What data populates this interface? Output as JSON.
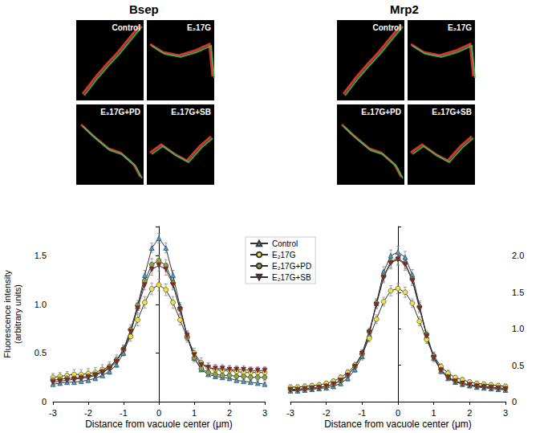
{
  "panels": [
    {
      "title": "Bsep",
      "labels": [
        "Control",
        "E₂17G",
        "E₂17G+PD",
        "E₂17G+SB"
      ]
    },
    {
      "title": "Mrp2",
      "labels": [
        "Control",
        "E₂17G",
        "E₂17G+PD",
        "E₂17G+SB"
      ]
    }
  ],
  "chart_data": [
    {
      "type": "line",
      "xlabel": "Distance from vacuole center (μm)",
      "ylabel": "Fluorescence intensity\n(arbitrary units)",
      "legend": "center",
      "x": [
        -3.0,
        -2.8,
        -2.6,
        -2.4,
        -2.2,
        -2.0,
        -1.8,
        -1.6,
        -1.4,
        -1.2,
        -1.0,
        -0.8,
        -0.6,
        -0.4,
        -0.2,
        0,
        0.2,
        0.4,
        0.6,
        0.8,
        1.0,
        1.2,
        1.4,
        1.6,
        1.8,
        2.0,
        2.2,
        2.4,
        2.6,
        2.8,
        3.0
      ],
      "xlim": [
        -3,
        3
      ],
      "xticks": [
        -3,
        -2,
        -1,
        0,
        1,
        2,
        3
      ],
      "ylim": [
        0,
        1.8
      ],
      "yticks": [
        0,
        0.5,
        {
          "value": 1,
          "label": "1.0"
        },
        1.5
      ],
      "series": [
        {
          "name": "Control",
          "color": "#3f9fd0",
          "marker": "triangle",
          "values": [
            0.18,
            0.19,
            0.2,
            0.2,
            0.21,
            0.22,
            0.24,
            0.27,
            0.31,
            0.38,
            0.5,
            0.7,
            0.98,
            1.3,
            1.58,
            1.68,
            1.58,
            1.3,
            0.98,
            0.68,
            0.45,
            0.33,
            0.28,
            0.26,
            0.25,
            0.24,
            0.22,
            0.21,
            0.2,
            0.19,
            0.18
          ],
          "errors": [
            0.02,
            0.02,
            0.02,
            0.02,
            0.02,
            0.02,
            0.02,
            0.02,
            0.03,
            0.03,
            0.03,
            0.04,
            0.04,
            0.05,
            0.05,
            0.05,
            0.05,
            0.05,
            0.04,
            0.04,
            0.03,
            0.02,
            0.02,
            0.02,
            0.02,
            0.02,
            0.02,
            0.02,
            0.02,
            0.02,
            0.02
          ]
        },
        {
          "name": "E₂17G",
          "color": "#f2e33c",
          "marker": "circle",
          "values": [
            0.25,
            0.26,
            0.27,
            0.28,
            0.28,
            0.29,
            0.3,
            0.33,
            0.36,
            0.43,
            0.53,
            0.67,
            0.84,
            1.02,
            1.16,
            1.2,
            1.15,
            1.02,
            0.84,
            0.66,
            0.5,
            0.4,
            0.35,
            0.33,
            0.32,
            0.32,
            0.31,
            0.3,
            0.3,
            0.3,
            0.3
          ],
          "errors": [
            0.04,
            0.04,
            0.04,
            0.05,
            0.05,
            0.05,
            0.05,
            0.05,
            0.05,
            0.05,
            0.05,
            0.05,
            0.06,
            0.06,
            0.06,
            0.06,
            0.06,
            0.06,
            0.05,
            0.05,
            0.05,
            0.05,
            0.05,
            0.05,
            0.05,
            0.05,
            0.05,
            0.05,
            0.05,
            0.05,
            0.05
          ]
        },
        {
          "name": "E₂17G+PD",
          "color": "#8da443",
          "marker": "circle",
          "values": [
            0.22,
            0.23,
            0.24,
            0.24,
            0.25,
            0.26,
            0.28,
            0.31,
            0.35,
            0.42,
            0.54,
            0.74,
            0.99,
            1.24,
            1.41,
            1.45,
            1.4,
            1.22,
            0.95,
            0.67,
            0.45,
            0.34,
            0.3,
            0.28,
            0.27,
            0.27,
            0.26,
            0.26,
            0.25,
            0.25,
            0.25
          ],
          "errors": [
            0.03,
            0.03,
            0.03,
            0.03,
            0.03,
            0.03,
            0.03,
            0.04,
            0.04,
            0.04,
            0.04,
            0.05,
            0.05,
            0.05,
            0.06,
            0.06,
            0.06,
            0.05,
            0.05,
            0.04,
            0.04,
            0.03,
            0.03,
            0.03,
            0.03,
            0.03,
            0.03,
            0.03,
            0.03,
            0.03,
            0.03
          ]
        },
        {
          "name": "E₂17G+SB",
          "color": "#a31c1c",
          "marker": "triangle-down",
          "values": [
            0.2,
            0.21,
            0.22,
            0.23,
            0.24,
            0.25,
            0.27,
            0.3,
            0.34,
            0.41,
            0.53,
            0.72,
            0.96,
            1.2,
            1.36,
            1.4,
            1.36,
            1.2,
            0.95,
            0.68,
            0.48,
            0.38,
            0.35,
            0.34,
            0.34,
            0.33,
            0.33,
            0.33,
            0.32,
            0.32,
            0.32
          ],
          "errors": [
            0.04,
            0.04,
            0.04,
            0.04,
            0.04,
            0.04,
            0.04,
            0.04,
            0.04,
            0.04,
            0.04,
            0.05,
            0.05,
            0.05,
            0.06,
            0.06,
            0.06,
            0.05,
            0.05,
            0.05,
            0.04,
            0.04,
            0.04,
            0.04,
            0.04,
            0.04,
            0.04,
            0.04,
            0.04,
            0.04,
            0.04
          ]
        }
      ]
    },
    {
      "type": "line",
      "xlabel": "Distance from vacuole center (μm)",
      "x": [
        -3.0,
        -2.8,
        -2.6,
        -2.4,
        -2.2,
        -2.0,
        -1.8,
        -1.6,
        -1.4,
        -1.2,
        -1.0,
        -0.8,
        -0.6,
        -0.4,
        -0.2,
        0,
        0.2,
        0.4,
        0.6,
        0.8,
        1.0,
        1.2,
        1.4,
        1.6,
        1.8,
        2.0,
        2.2,
        2.4,
        2.6,
        2.8,
        3.0
      ],
      "xlim": [
        -3,
        3
      ],
      "xticks": [
        -3,
        -2,
        -1,
        0,
        1,
        2,
        3
      ],
      "ylim": [
        0,
        2.4
      ],
      "yticks": [
        0,
        0.5,
        {
          "value": 1,
          "label": "1.0"
        },
        1.5,
        {
          "value": 2,
          "label": "2.0"
        }
      ],
      "series": [
        {
          "name": "Control",
          "color": "#3f9fd0",
          "marker": "triangle",
          "values": [
            0.15,
            0.15,
            0.16,
            0.17,
            0.18,
            0.19,
            0.21,
            0.25,
            0.32,
            0.44,
            0.62,
            0.92,
            1.35,
            1.78,
            2.0,
            2.05,
            1.98,
            1.74,
            1.32,
            0.9,
            0.6,
            0.42,
            0.32,
            0.27,
            0.24,
            0.22,
            0.2,
            0.19,
            0.18,
            0.17,
            0.16
          ],
          "errors": [
            0.03,
            0.03,
            0.03,
            0.03,
            0.03,
            0.03,
            0.03,
            0.03,
            0.04,
            0.04,
            0.05,
            0.05,
            0.06,
            0.07,
            0.08,
            0.08,
            0.08,
            0.07,
            0.06,
            0.05,
            0.05,
            0.04,
            0.03,
            0.03,
            0.03,
            0.03,
            0.03,
            0.03,
            0.03,
            0.03,
            0.03
          ]
        },
        {
          "name": "E₂17G",
          "color": "#f2e33c",
          "marker": "circle",
          "values": [
            0.2,
            0.2,
            0.21,
            0.22,
            0.23,
            0.25,
            0.28,
            0.33,
            0.4,
            0.5,
            0.65,
            0.87,
            1.13,
            1.37,
            1.52,
            1.55,
            1.5,
            1.35,
            1.1,
            0.85,
            0.63,
            0.48,
            0.39,
            0.33,
            0.3,
            0.27,
            0.25,
            0.24,
            0.23,
            0.22,
            0.21
          ],
          "errors": [
            0.03,
            0.03,
            0.03,
            0.03,
            0.03,
            0.03,
            0.03,
            0.04,
            0.04,
            0.04,
            0.05,
            0.05,
            0.06,
            0.06,
            0.07,
            0.07,
            0.07,
            0.06,
            0.06,
            0.05,
            0.05,
            0.04,
            0.04,
            0.03,
            0.03,
            0.03,
            0.03,
            0.03,
            0.03,
            0.03,
            0.03
          ]
        },
        {
          "name": "E₂17G+PD",
          "color": "#8da443",
          "marker": "circle",
          "values": [
            0.17,
            0.17,
            0.18,
            0.19,
            0.2,
            0.21,
            0.24,
            0.29,
            0.36,
            0.48,
            0.66,
            0.96,
            1.35,
            1.72,
            1.92,
            1.96,
            1.9,
            1.68,
            1.3,
            0.92,
            0.62,
            0.44,
            0.34,
            0.28,
            0.25,
            0.23,
            0.22,
            0.21,
            0.2,
            0.19,
            0.18
          ],
          "errors": [
            0.03,
            0.03,
            0.03,
            0.03,
            0.03,
            0.03,
            0.03,
            0.03,
            0.04,
            0.04,
            0.05,
            0.05,
            0.06,
            0.07,
            0.08,
            0.08,
            0.08,
            0.07,
            0.06,
            0.05,
            0.05,
            0.04,
            0.03,
            0.03,
            0.03,
            0.03,
            0.03,
            0.03,
            0.03,
            0.03,
            0.03
          ]
        },
        {
          "name": "E₂17G+SB",
          "color": "#a31c1c",
          "marker": "triangle-down",
          "values": [
            0.16,
            0.16,
            0.17,
            0.18,
            0.19,
            0.21,
            0.24,
            0.29,
            0.36,
            0.48,
            0.66,
            0.95,
            1.33,
            1.7,
            1.9,
            1.95,
            1.88,
            1.66,
            1.28,
            0.9,
            0.6,
            0.43,
            0.33,
            0.28,
            0.25,
            0.23,
            0.21,
            0.2,
            0.19,
            0.18,
            0.17
          ],
          "errors": [
            0.03,
            0.03,
            0.03,
            0.03,
            0.03,
            0.03,
            0.03,
            0.03,
            0.04,
            0.04,
            0.05,
            0.05,
            0.06,
            0.07,
            0.08,
            0.08,
            0.08,
            0.07,
            0.06,
            0.05,
            0.05,
            0.04,
            0.03,
            0.03,
            0.03,
            0.03,
            0.03,
            0.03,
            0.03,
            0.03,
            0.03
          ]
        }
      ]
    }
  ]
}
